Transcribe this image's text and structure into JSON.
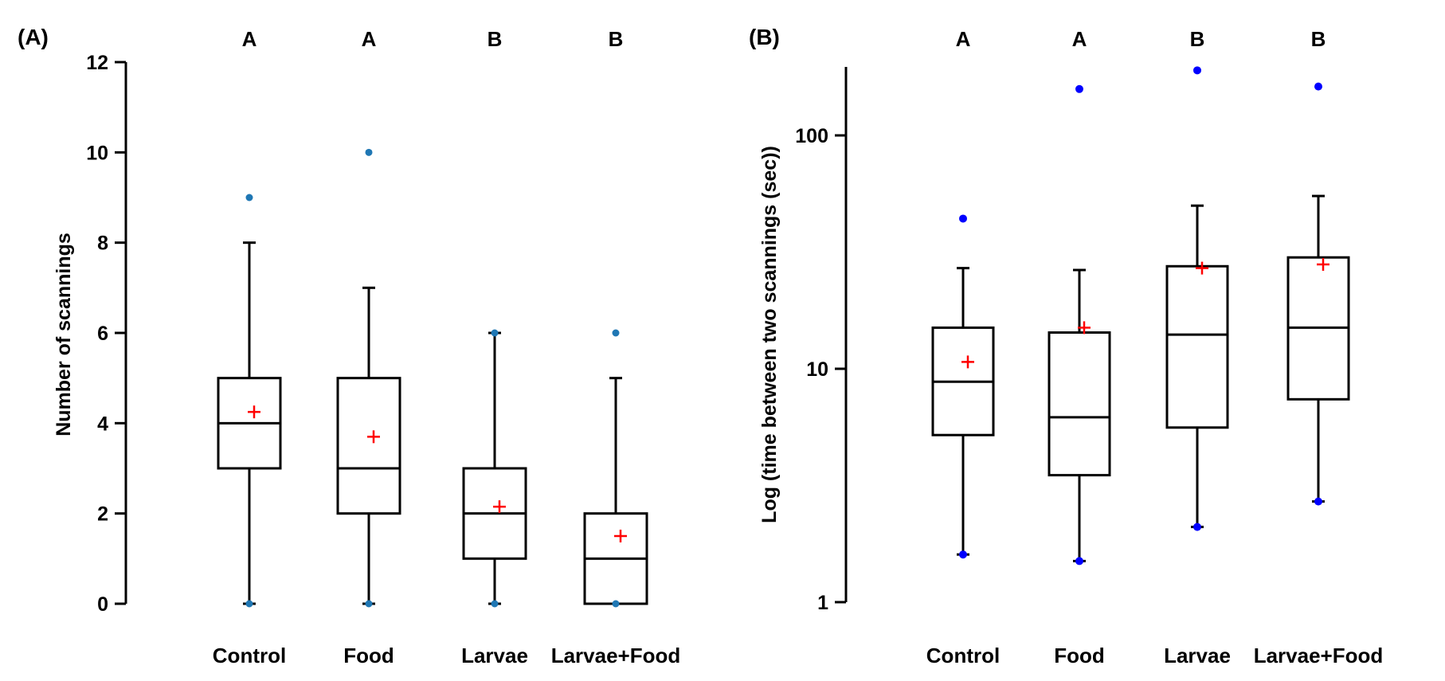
{
  "chart_data": [
    {
      "type": "box",
      "panel_label": "(A)",
      "ylabel": "Number of scannings",
      "ylim": [
        0,
        12
      ],
      "yticks": [
        "0",
        "2",
        "4",
        "6",
        "8",
        "10",
        "12"
      ],
      "yscale": "linear",
      "categories": [
        "Control",
        "Food",
        "Larvae",
        "Larvae+Food"
      ],
      "group_letters": [
        "A",
        "A",
        "B",
        "B"
      ],
      "boxes": [
        {
          "whisker_low": 0,
          "q1": 3,
          "median": 4,
          "q3": 5,
          "whisker_high": 8,
          "mean": 4.25,
          "outliers": [
            9
          ],
          "min_dot": 0
        },
        {
          "whisker_low": 0,
          "q1": 2,
          "median": 3,
          "q3": 5,
          "whisker_high": 7,
          "mean": 3.7,
          "outliers": [
            10
          ],
          "min_dot": 0
        },
        {
          "whisker_low": 0,
          "q1": 1,
          "median": 2,
          "q3": 3,
          "whisker_high": 6,
          "mean": 2.15,
          "outliers": [],
          "max_dot": 6,
          "min_dot": 0
        },
        {
          "whisker_low": 0,
          "q1": 0,
          "median": 1,
          "q3": 2,
          "whisker_high": 5,
          "mean": 1.5,
          "outliers": [
            6
          ],
          "min_dot": 0
        }
      ],
      "colors": {
        "box": "#000000",
        "outlier": "#1f77b4",
        "mean": "#ff0000"
      }
    },
    {
      "type": "box",
      "panel_label": "(B)",
      "ylabel": "Log (time between two scannings (sec))",
      "ylim": [
        1,
        200
      ],
      "yticks": [
        "1",
        "10",
        "100"
      ],
      "yscale": "log",
      "categories": [
        "Control",
        "Food",
        "Larvae",
        "Larvae+Food"
      ],
      "group_letters": [
        "A",
        "A",
        "B",
        "B"
      ],
      "boxes": [
        {
          "whisker_low": 1.6,
          "q1": 5.2,
          "median": 8.8,
          "q3": 15,
          "whisker_high": 27,
          "mean": 10.7,
          "outliers": [
            44
          ],
          "min_dot": 1.6
        },
        {
          "whisker_low": 1.5,
          "q1": 3.5,
          "median": 6.2,
          "q3": 14.3,
          "whisker_high": 26.5,
          "mean": 15,
          "outliers": [
            158
          ],
          "min_dot": 1.5
        },
        {
          "whisker_low": 2.1,
          "q1": 5.6,
          "median": 14,
          "q3": 27.5,
          "whisker_high": 50,
          "mean": 27,
          "outliers": [
            190
          ],
          "min_dot": 2.1
        },
        {
          "whisker_low": 2.7,
          "q1": 7.4,
          "median": 15,
          "q3": 30,
          "whisker_high": 55,
          "mean": 28,
          "outliers": [
            162
          ],
          "min_dot": 2.7
        }
      ],
      "colors": {
        "box": "#000000",
        "outlier": "#0000ff",
        "mean": "#ff0000"
      }
    }
  ]
}
